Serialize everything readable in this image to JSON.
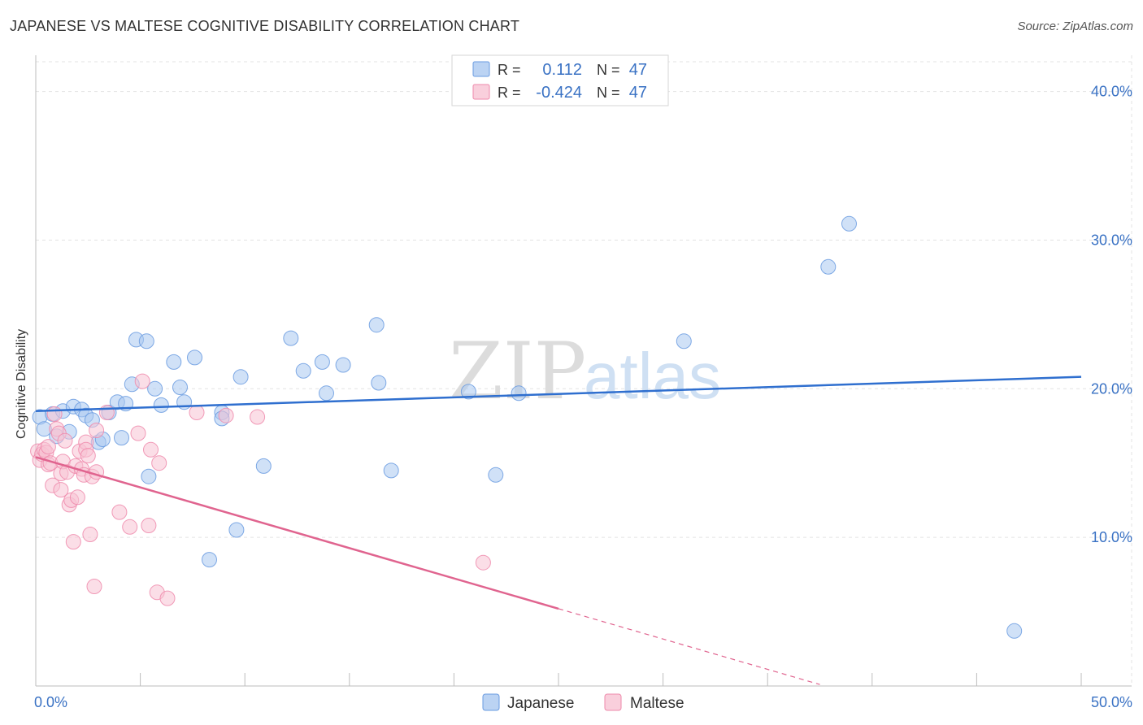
{
  "chart_data": {
    "type": "scatter",
    "title": "JAPANESE VS MALTESE COGNITIVE DISABILITY CORRELATION CHART",
    "source": "Source: ZipAtlas.com",
    "xlabel": "",
    "ylabel": "Cognitive Disability",
    "xlim": [
      0,
      50
    ],
    "ylim": [
      0,
      42
    ],
    "x_tick_labels": [
      "0.0%",
      "50.0%"
    ],
    "y_ticks": [
      10,
      20,
      30,
      40
    ],
    "y_tick_labels": [
      "10.0%",
      "20.0%",
      "30.0%",
      "40.0%"
    ],
    "grid": true,
    "watermark": {
      "zip": "ZIP",
      "atlas": "atlas"
    },
    "stats": [
      {
        "series": "Japanese",
        "r_label": "R =",
        "r_value": "0.112",
        "n_label": "N =",
        "n_value": "47",
        "color": "#6a9be0"
      },
      {
        "series": "Maltese",
        "r_label": "R =",
        "r_value": "-0.424",
        "n_label": "N =",
        "n_value": "47",
        "color": "#ee8aab"
      }
    ],
    "series": [
      {
        "name": "Japanese",
        "color": "#6a9be0",
        "fill": "#aac8f0",
        "trend": {
          "x0": 0,
          "y0": 18.5,
          "x1": 50,
          "y1": 20.8,
          "dashed_from": null
        },
        "points": [
          [
            0.2,
            18.1
          ],
          [
            0.4,
            17.3
          ],
          [
            0.8,
            18.3
          ],
          [
            1.0,
            16.8
          ],
          [
            1.3,
            18.5
          ],
          [
            1.6,
            17.1
          ],
          [
            1.8,
            18.8
          ],
          [
            2.2,
            18.6
          ],
          [
            2.4,
            18.2
          ],
          [
            2.7,
            17.9
          ],
          [
            3.0,
            16.4
          ],
          [
            3.2,
            16.6
          ],
          [
            3.5,
            18.4
          ],
          [
            3.9,
            19.1
          ],
          [
            4.1,
            16.7
          ],
          [
            4.3,
            19.0
          ],
          [
            4.6,
            20.3
          ],
          [
            4.8,
            23.3
          ],
          [
            5.3,
            23.2
          ],
          [
            5.4,
            14.1
          ],
          [
            5.7,
            20.0
          ],
          [
            6.0,
            18.9
          ],
          [
            6.6,
            21.8
          ],
          [
            6.9,
            20.1
          ],
          [
            7.1,
            19.1
          ],
          [
            7.6,
            22.1
          ],
          [
            8.3,
            8.5
          ],
          [
            8.9,
            18.4
          ],
          [
            8.9,
            18.0
          ],
          [
            9.6,
            10.5
          ],
          [
            9.8,
            20.8
          ],
          [
            10.9,
            14.8
          ],
          [
            12.2,
            23.4
          ],
          [
            12.8,
            21.2
          ],
          [
            13.7,
            21.8
          ],
          [
            13.9,
            19.7
          ],
          [
            14.7,
            21.6
          ],
          [
            16.3,
            24.3
          ],
          [
            16.4,
            20.4
          ],
          [
            17.0,
            14.5
          ],
          [
            20.7,
            19.8
          ],
          [
            22.0,
            14.2
          ],
          [
            23.1,
            19.7
          ],
          [
            31.0,
            23.2
          ],
          [
            37.9,
            28.2
          ],
          [
            38.9,
            31.1
          ],
          [
            46.8,
            3.7
          ]
        ]
      },
      {
        "name": "Maltese",
        "color": "#ee8aab",
        "fill": "#f8c3d3",
        "trend": {
          "x0": 0,
          "y0": 15.4,
          "x1": 37.5,
          "y1": 0.1,
          "dashed_from": 25.0
        },
        "points": [
          [
            0.1,
            15.8
          ],
          [
            0.2,
            15.2
          ],
          [
            0.3,
            15.6
          ],
          [
            0.4,
            15.9
          ],
          [
            0.5,
            15.7
          ],
          [
            0.6,
            14.9
          ],
          [
            0.6,
            16.1
          ],
          [
            0.7,
            15.0
          ],
          [
            0.8,
            13.5
          ],
          [
            0.9,
            18.3
          ],
          [
            1.0,
            17.3
          ],
          [
            1.1,
            17.0
          ],
          [
            1.2,
            14.3
          ],
          [
            1.2,
            13.2
          ],
          [
            1.3,
            15.1
          ],
          [
            1.4,
            16.5
          ],
          [
            1.5,
            14.4
          ],
          [
            1.6,
            12.2
          ],
          [
            1.7,
            12.5
          ],
          [
            1.8,
            9.7
          ],
          [
            1.9,
            14.8
          ],
          [
            2.0,
            12.7
          ],
          [
            2.1,
            15.8
          ],
          [
            2.2,
            14.6
          ],
          [
            2.3,
            14.2
          ],
          [
            2.4,
            16.4
          ],
          [
            2.4,
            15.9
          ],
          [
            2.5,
            15.5
          ],
          [
            2.6,
            10.2
          ],
          [
            2.7,
            14.1
          ],
          [
            2.8,
            6.7
          ],
          [
            2.9,
            17.2
          ],
          [
            2.9,
            14.4
          ],
          [
            3.4,
            18.4
          ],
          [
            4.0,
            11.7
          ],
          [
            4.5,
            10.7
          ],
          [
            4.9,
            17.0
          ],
          [
            5.1,
            20.5
          ],
          [
            5.4,
            10.8
          ],
          [
            5.5,
            15.9
          ],
          [
            5.8,
            6.3
          ],
          [
            5.9,
            15.0
          ],
          [
            6.3,
            5.9
          ],
          [
            7.7,
            18.4
          ],
          [
            9.1,
            18.2
          ],
          [
            10.6,
            18.1
          ],
          [
            21.4,
            8.3
          ]
        ]
      }
    ],
    "legend": [
      "Japanese",
      "Maltese"
    ],
    "legend_placement": "bottom-center"
  }
}
